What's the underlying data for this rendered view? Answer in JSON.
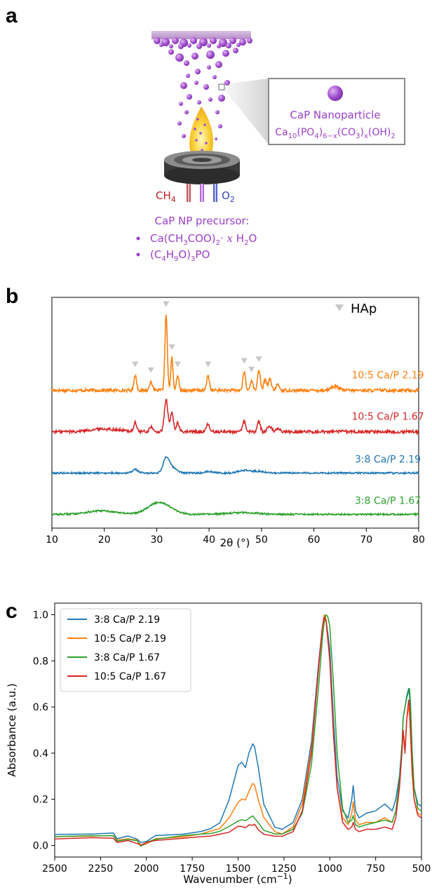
{
  "panels": {
    "a": "a",
    "b": "b",
    "c": "c"
  },
  "schematic": {
    "ch4": "CH",
    "ch4_sub": "4",
    "o2": "O",
    "o2_sub": "2",
    "np_title": "CaP Nanoparticle",
    "np_formula": {
      "ca": "Ca",
      "ca_sub": "10",
      "po4": "(PO",
      "po4_sub": "4",
      "po4_close": ")",
      "po4_close_sub": "6−x",
      "co3": "(CO",
      "co3_sub": "3",
      "co3_close": ")",
      "co3_close_sub": "x",
      "oh": "(OH)",
      "oh_sub": "2"
    },
    "precursor_title": "CaP NP precursor:",
    "precursor_1": {
      "a": "Ca(CH",
      "a_sub": "3",
      "b": "COO)",
      "b_sub": "2",
      "c": "· ",
      "x": "x",
      "d": " H",
      "d_sub": "2",
      "e": "O"
    },
    "precursor_2": {
      "a": "(C",
      "a_sub": "4",
      "b": "H",
      "b_sub": "9",
      "c": "O)",
      "c_sub": "3",
      "d": "PO"
    },
    "colors": {
      "particle": "#a24fd0",
      "particle_text": "#9a3fc8",
      "ch4": "#b3242a",
      "o2": "#3a48b8",
      "flame": "#f5c21a",
      "substrate": "#c7a6d6"
    }
  },
  "chart_data": [
    {
      "type": "line",
      "panel": "b",
      "xlabel": "2θ (°)",
      "ylabel": "",
      "xlim": [
        10,
        80
      ],
      "xticks": [
        10,
        20,
        30,
        40,
        50,
        60,
        70,
        80
      ],
      "yticks": false,
      "legend": {
        "marker": "triangle-down",
        "label": "HAp",
        "position": "top-right"
      },
      "hap_peaks": [
        25.9,
        28.9,
        31.8,
        32.9,
        34.0,
        39.8,
        46.7,
        48.1,
        49.5
      ],
      "series": [
        {
          "name": "10:5 Ca/P 2.19",
          "color": "#ff7f0e",
          "offset": 3.6,
          "peaks": [
            [
              25.9,
              0.45,
              0.35
            ],
            [
              28.9,
              0.28,
              0.35
            ],
            [
              31.8,
              2.2,
              0.32
            ],
            [
              32.9,
              0.95,
              0.3
            ],
            [
              34.0,
              0.45,
              0.3
            ],
            [
              39.8,
              0.45,
              0.35
            ],
            [
              46.7,
              0.55,
              0.35
            ],
            [
              48.1,
              0.3,
              0.35
            ],
            [
              49.5,
              0.6,
              0.35
            ],
            [
              50.7,
              0.3,
              0.4
            ],
            [
              51.6,
              0.32,
              0.4
            ],
            [
              53.1,
              0.18,
              0.4
            ],
            [
              64.0,
              0.12,
              1.0
            ]
          ]
        },
        {
          "name": "10:5 Ca/P 1.67",
          "color": "#d62728",
          "offset": 2.4,
          "peaks": [
            [
              20,
              0.08,
              4
            ],
            [
              25.9,
              0.25,
              0.4
            ],
            [
              28.9,
              0.15,
              0.4
            ],
            [
              31.8,
              0.95,
              0.45
            ],
            [
              32.9,
              0.55,
              0.4
            ],
            [
              34.0,
              0.25,
              0.4
            ],
            [
              39.8,
              0.22,
              0.4
            ],
            [
              46.7,
              0.3,
              0.4
            ],
            [
              49.5,
              0.3,
              0.4
            ],
            [
              51.5,
              0.15,
              0.6
            ],
            [
              53.1,
              0.1,
              0.5
            ]
          ]
        },
        {
          "name": "3:8 Ca/P 2.19",
          "color": "#1f77b4",
          "offset": 1.2,
          "peaks": [
            [
              25.9,
              0.1,
              0.8
            ],
            [
              31.8,
              0.42,
              0.8
            ],
            [
              33,
              0.15,
              1.2
            ],
            [
              40,
              0.05,
              1
            ],
            [
              46.7,
              0.08,
              1.5
            ],
            [
              49.5,
              0.05,
              1.5
            ]
          ]
        },
        {
          "name": "3:8 Ca/P 1.67",
          "color": "#2ca02c",
          "offset": 0.0,
          "peaks": [
            [
              19.5,
              0.1,
              4
            ],
            [
              30.5,
              0.35,
              3
            ],
            [
              46.5,
              0.05,
              4
            ]
          ]
        }
      ]
    },
    {
      "type": "line",
      "panel": "c",
      "xlabel": "Wavenumber (cm",
      "xlabel_sup": "−1",
      "xlabel_close": ")",
      "ylabel": "Absorbance (a.u.)",
      "xlim": [
        2500,
        500
      ],
      "ylim": [
        -0.05,
        1.05
      ],
      "xticks": [
        2500,
        2250,
        2000,
        1750,
        1500,
        1250,
        1000,
        750,
        500
      ],
      "yticks": [
        0.0,
        0.2,
        0.4,
        0.6,
        0.8,
        1.0
      ],
      "ytick_labels": [
        "0.0",
        "0.2",
        "0.4",
        "0.6",
        "0.8",
        "1.0"
      ],
      "legend_position": "top-left",
      "series": [
        {
          "name": "3:8 Ca/P 2.19",
          "color": "#1f77b4",
          "x": [
            2500,
            2300,
            2180,
            2160,
            2100,
            2050,
            2030,
            2000,
            1950,
            1800,
            1700,
            1650,
            1600,
            1550,
            1500,
            1480,
            1460,
            1440,
            1420,
            1410,
            1390,
            1360,
            1300,
            1260,
            1200,
            1150,
            1100,
            1060,
            1040,
            1030,
            1020,
            1000,
            980,
            960,
            930,
            900,
            880,
            872,
            860,
            840,
            800,
            750,
            700,
            660,
            640,
            620,
            605,
            600,
            590,
            580,
            570,
            565,
            560,
            550,
            540,
            520,
            500
          ],
          "y": [
            0.05,
            0.05,
            0.05,
            0.03,
            0.04,
            0.03,
            0.01,
            0.02,
            0.04,
            0.05,
            0.06,
            0.07,
            0.1,
            0.2,
            0.35,
            0.36,
            0.34,
            0.4,
            0.44,
            0.43,
            0.34,
            0.18,
            0.08,
            0.07,
            0.1,
            0.2,
            0.45,
            0.8,
            0.95,
            0.99,
            0.98,
            0.85,
            0.55,
            0.3,
            0.15,
            0.12,
            0.2,
            0.26,
            0.15,
            0.12,
            0.14,
            0.15,
            0.18,
            0.15,
            0.2,
            0.3,
            0.45,
            0.55,
            0.6,
            0.65,
            0.68,
            0.65,
            0.55,
            0.35,
            0.25,
            0.18,
            0.17
          ]
        },
        {
          "name": "10:5 Ca/P 2.19",
          "color": "#ff7f0e",
          "x": [
            2500,
            2300,
            2180,
            2160,
            2100,
            2050,
            2030,
            2000,
            1950,
            1800,
            1700,
            1650,
            1600,
            1550,
            1500,
            1480,
            1460,
            1440,
            1420,
            1410,
            1390,
            1360,
            1300,
            1260,
            1200,
            1150,
            1100,
            1060,
            1040,
            1030,
            1020,
            1000,
            980,
            960,
            930,
            900,
            880,
            872,
            860,
            840,
            800,
            750,
            700,
            660,
            640,
            620,
            605,
            600,
            590,
            580,
            570,
            565,
            560,
            550,
            540,
            520,
            500
          ],
          "y": [
            0.04,
            0.04,
            0.04,
            0.02,
            0.03,
            0.02,
            0.0,
            0.01,
            0.03,
            0.04,
            0.05,
            0.06,
            0.07,
            0.12,
            0.19,
            0.2,
            0.2,
            0.24,
            0.27,
            0.26,
            0.2,
            0.12,
            0.06,
            0.05,
            0.08,
            0.18,
            0.42,
            0.78,
            0.95,
            1.0,
            0.98,
            0.8,
            0.48,
            0.25,
            0.12,
            0.09,
            0.14,
            0.19,
            0.11,
            0.09,
            0.1,
            0.1,
            0.12,
            0.1,
            0.15,
            0.25,
            0.42,
            0.5,
            0.42,
            0.55,
            0.6,
            0.57,
            0.48,
            0.3,
            0.2,
            0.14,
            0.13
          ]
        },
        {
          "name": "3:8 Ca/P 1.67",
          "color": "#2ca02c",
          "x": [
            2500,
            2300,
            2180,
            2160,
            2100,
            2050,
            2030,
            2000,
            1950,
            1800,
            1700,
            1650,
            1600,
            1550,
            1500,
            1480,
            1460,
            1440,
            1420,
            1410,
            1390,
            1360,
            1300,
            1260,
            1200,
            1150,
            1100,
            1060,
            1040,
            1030,
            1020,
            1010,
            1000,
            980,
            960,
            930,
            900,
            880,
            872,
            860,
            840,
            800,
            750,
            700,
            660,
            640,
            620,
            605,
            600,
            590,
            580,
            570,
            565,
            560,
            550,
            540,
            520,
            500
          ],
          "y": [
            0.04,
            0.04,
            0.04,
            0.02,
            0.03,
            0.02,
            0.0,
            0.01,
            0.03,
            0.04,
            0.05,
            0.05,
            0.06,
            0.08,
            0.11,
            0.11,
            0.11,
            0.12,
            0.13,
            0.12,
            0.1,
            0.07,
            0.05,
            0.05,
            0.07,
            0.14,
            0.35,
            0.7,
            0.9,
            0.97,
            1.0,
            0.99,
            0.95,
            0.7,
            0.4,
            0.16,
            0.1,
            0.11,
            0.13,
            0.09,
            0.08,
            0.09,
            0.1,
            0.11,
            0.1,
            0.15,
            0.28,
            0.45,
            0.55,
            0.6,
            0.64,
            0.67,
            0.68,
            0.62,
            0.4,
            0.25,
            0.16,
            0.15
          ]
        },
        {
          "name": "10:5 Ca/P 1.67",
          "color": "#d62728",
          "x": [
            2500,
            2300,
            2180,
            2160,
            2100,
            2050,
            2030,
            2000,
            1950,
            1800,
            1700,
            1650,
            1600,
            1550,
            1500,
            1480,
            1460,
            1440,
            1420,
            1410,
            1390,
            1360,
            1300,
            1260,
            1200,
            1150,
            1100,
            1060,
            1040,
            1030,
            1020,
            1000,
            980,
            960,
            930,
            900,
            880,
            872,
            860,
            840,
            800,
            750,
            700,
            660,
            640,
            620,
            605,
            600,
            590,
            580,
            570,
            565,
            560,
            550,
            540,
            520,
            500
          ],
          "y": [
            0.03,
            0.03,
            0.03,
            0.01,
            0.02,
            0.01,
            0.0,
            0.01,
            0.02,
            0.03,
            0.04,
            0.04,
            0.05,
            0.06,
            0.08,
            0.08,
            0.08,
            0.09,
            0.09,
            0.09,
            0.07,
            0.05,
            0.04,
            0.04,
            0.06,
            0.15,
            0.4,
            0.78,
            0.95,
            0.99,
            0.97,
            0.8,
            0.48,
            0.25,
            0.1,
            0.07,
            0.08,
            0.1,
            0.07,
            0.06,
            0.07,
            0.07,
            0.08,
            0.07,
            0.12,
            0.25,
            0.42,
            0.5,
            0.4,
            0.55,
            0.63,
            0.6,
            0.5,
            0.32,
            0.2,
            0.13,
            0.12
          ]
        }
      ]
    }
  ]
}
